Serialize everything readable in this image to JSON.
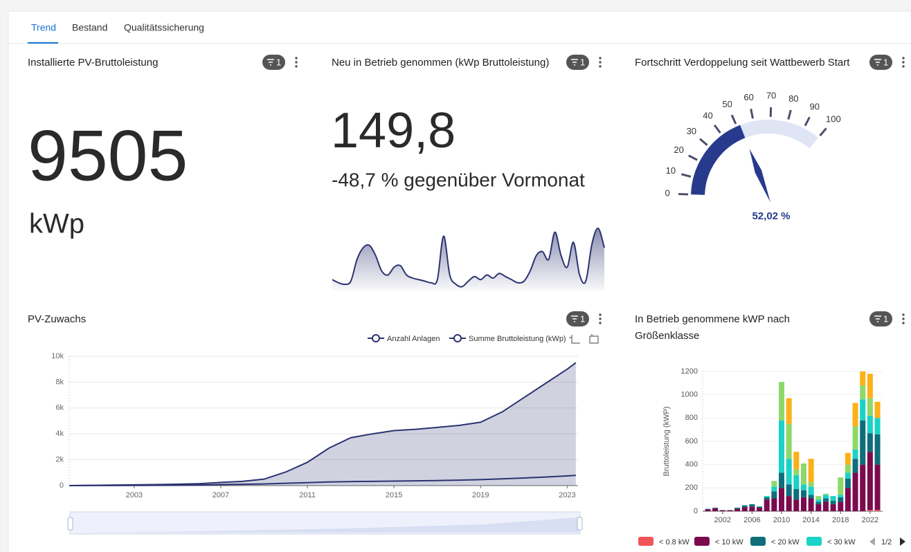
{
  "header": {
    "tabs": [
      "Trend",
      "Bestand",
      "Qualitätssicherung"
    ]
  },
  "cards": [
    {
      "title": "Installierte PV-Bruttoleistung",
      "filter_count": "1",
      "value": "9505",
      "unit": "kWp"
    },
    {
      "title": "Neu in Betrieb genommen (kWp Bruttoleistung)",
      "filter_count": "1",
      "value": "149,8",
      "comparison": "-48,7 % gegenüber Vormonat"
    }
  ],
  "chart_data": [
    {
      "type": "area",
      "color": "#2b3270",
      "values": [
        14,
        10,
        8,
        12,
        40,
        55,
        58,
        45,
        25,
        20,
        30,
        32,
        20,
        16,
        14,
        12,
        10,
        14,
        70,
        20,
        8,
        5,
        12,
        18,
        14,
        20,
        16,
        22,
        18,
        14,
        10,
        12,
        25,
        45,
        50,
        40,
        75,
        45,
        30,
        62,
        20,
        12,
        60,
        80,
        55
      ]
    },
    {
      "type": "gauge",
      "title": "Fortschritt Verdoppelung seit Wattbewerb Start",
      "filter_count": "1",
      "value": 52.02,
      "value_label": "52,02 %",
      "ylim": [
        0,
        100
      ],
      "yticks": [
        0,
        10,
        20,
        30,
        40,
        50,
        60,
        70,
        80,
        90,
        100
      ],
      "color": "#283a8c",
      "track_color": "#dfe5f5"
    },
    {
      "type": "line",
      "title": "PV-Zuwachs",
      "filter_count": "1",
      "x": [
        2000,
        2001,
        2002,
        2003,
        2004,
        2005,
        2006,
        2007,
        2008,
        2009,
        2010,
        2011,
        2012,
        2013,
        2014,
        2015,
        2016,
        2017,
        2018,
        2019,
        2020,
        2021,
        2022,
        2023,
        2023.4
      ],
      "series": [
        {
          "name": "Anzahl Anlagen",
          "color": "#2b3270",
          "values": [
            0,
            5,
            10,
            15,
            20,
            30,
            50,
            80,
            100,
            130,
            180,
            230,
            280,
            310,
            330,
            350,
            370,
            390,
            420,
            460,
            520,
            590,
            660,
            750,
            790
          ]
        },
        {
          "name": "Summe Bruttoleistung (kWp)",
          "color": "#2b3270",
          "area": true,
          "values": [
            0,
            20,
            40,
            60,
            80,
            110,
            150,
            250,
            330,
            500,
            1050,
            1800,
            2900,
            3700,
            4000,
            4250,
            4350,
            4500,
            4650,
            4900,
            5700,
            6800,
            7900,
            9000,
            9500
          ]
        }
      ],
      "xlim": [
        2000,
        2023.5
      ],
      "xticks": [
        2003,
        2007,
        2011,
        2015,
        2019,
        2023
      ],
      "ylim": [
        0,
        10000
      ],
      "yticks": [
        0,
        {
          "value": 2000,
          "label": "2k"
        },
        {
          "value": 4000,
          "label": "4k"
        },
        {
          "value": 6000,
          "label": "6k"
        },
        {
          "value": 8000,
          "label": "8k"
        },
        {
          "value": 10000,
          "label": "10k"
        }
      ],
      "grid": true
    },
    {
      "type": "bar",
      "stacked": true,
      "title": "In Betrieb genommene kWP nach Größenklasse",
      "filter_count": "1",
      "ylabel": "Bruttoleistung (kWP)",
      "x": [
        2000,
        2001,
        2002,
        2003,
        2004,
        2005,
        2006,
        2007,
        2008,
        2009,
        2010,
        2011,
        2012,
        2013,
        2014,
        2015,
        2016,
        2017,
        2018,
        2019,
        2020,
        2021,
        2022,
        2023
      ],
      "xlim": [
        1999.3,
        2023.7
      ],
      "xticks": [
        2002,
        2006,
        2010,
        2014,
        2018,
        2022
      ],
      "ylim": [
        0,
        1200
      ],
      "yticks": [
        0,
        200,
        400,
        600,
        800,
        1000,
        1200
      ],
      "grid": true,
      "legend_page": "1/2",
      "series": [
        {
          "name": "< 0.8 kW",
          "color": "#f0555a",
          "values": [
            0,
            0,
            0,
            0,
            0,
            0,
            0,
            0,
            0,
            0,
            0,
            0,
            0,
            0,
            0,
            0,
            0,
            0,
            0,
            0,
            0,
            0,
            10,
            10
          ]
        },
        {
          "name": "< 10 kW",
          "color": "#7b0a4f",
          "values": [
            15,
            25,
            8,
            8,
            20,
            35,
            40,
            30,
            100,
            110,
            200,
            130,
            100,
            120,
            110,
            60,
            80,
            60,
            80,
            200,
            330,
            400,
            500,
            390
          ]
        },
        {
          "name": "< 20 kW",
          "color": "#0e6e7a",
          "values": [
            5,
            5,
            2,
            2,
            10,
            15,
            20,
            10,
            20,
            60,
            130,
            100,
            90,
            60,
            30,
            20,
            30,
            30,
            40,
            80,
            120,
            380,
            160,
            260
          ]
        },
        {
          "name": "< 30 kW",
          "color": "#1ad2c6",
          "values": [
            0,
            0,
            0,
            0,
            0,
            0,
            0,
            0,
            10,
            40,
            450,
            220,
            120,
            50,
            70,
            20,
            30,
            40,
            20,
            50,
            80,
            180,
            150,
            140
          ]
        },
        {
          "color": "#8ed86a",
          "values": [
            0,
            0,
            0,
            0,
            0,
            0,
            0,
            0,
            0,
            50,
            330,
            300,
            50,
            180,
            40,
            30,
            10,
            0,
            150,
            70,
            200,
            120,
            150,
            0
          ]
        },
        {
          "color": "#fbb117",
          "values": [
            0,
            0,
            0,
            0,
            0,
            0,
            0,
            0,
            0,
            0,
            0,
            220,
            150,
            0,
            200,
            0,
            0,
            0,
            0,
            100,
            200,
            120,
            210,
            140
          ]
        }
      ]
    }
  ]
}
